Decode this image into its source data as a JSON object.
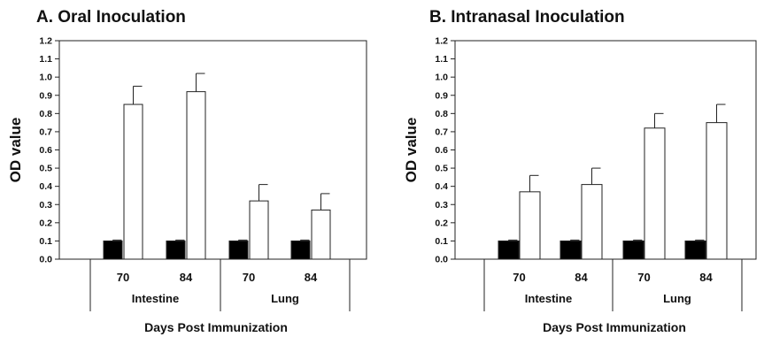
{
  "chart_data": [
    {
      "type": "bar",
      "title": "A. Oral Inoculation",
      "ylabel": "OD value",
      "xlabel": "Days Post Immunization",
      "ylim": [
        0,
        1.2
      ],
      "yticks": [
        "0.0",
        "0.1",
        "0.2",
        "0.3",
        "0.4",
        "0.5",
        "0.6",
        "0.7",
        "0.8",
        "0.9",
        "1.0",
        "1.1",
        "1.2"
      ],
      "groups": [
        {
          "label": "Intestine",
          "categories": [
            "70",
            "84"
          ]
        },
        {
          "label": "Lung",
          "categories": [
            "70",
            "84"
          ]
        }
      ],
      "series": [
        {
          "color": "#000000",
          "values": [
            0.1,
            0.1,
            0.1,
            0.1
          ],
          "errors": [
            0.005,
            0.005,
            0.005,
            0.005
          ]
        },
        {
          "color": "#ffffff",
          "values": [
            0.85,
            0.92,
            0.32,
            0.27
          ],
          "errors": [
            0.1,
            0.1,
            0.09,
            0.09
          ]
        }
      ],
      "grid": false,
      "legend": "none"
    },
    {
      "type": "bar",
      "title": "B. Intranasal Inoculation",
      "ylabel": "OD value",
      "xlabel": "Days Post Immunization",
      "ylim": [
        0,
        1.2
      ],
      "yticks": [
        "0.0",
        "0.1",
        "0.2",
        "0.3",
        "0.4",
        "0.5",
        "0.6",
        "0.7",
        "0.8",
        "0.9",
        "1.0",
        "1.1",
        "1.2"
      ],
      "groups": [
        {
          "label": "Intestine",
          "categories": [
            "70",
            "84"
          ]
        },
        {
          "label": "Lung",
          "categories": [
            "70",
            "84"
          ]
        }
      ],
      "series": [
        {
          "color": "#000000",
          "values": [
            0.1,
            0.1,
            0.1,
            0.1
          ],
          "errors": [
            0.005,
            0.005,
            0.005,
            0.005
          ]
        },
        {
          "color": "#ffffff",
          "values": [
            0.37,
            0.41,
            0.72,
            0.75
          ],
          "errors": [
            0.09,
            0.09,
            0.08,
            0.1
          ]
        }
      ],
      "grid": false,
      "legend": "none"
    }
  ]
}
